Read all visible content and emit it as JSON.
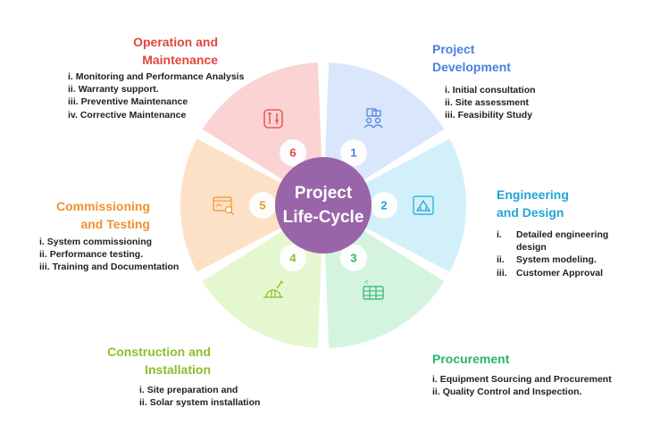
{
  "center_label": [
    "Project",
    "Life-Cycle"
  ],
  "stages": [
    {
      "number": "1",
      "title_lines": [
        "Project",
        "Development"
      ],
      "title_color": "#4a7fe0",
      "fill": "#d9e6fb",
      "number_color": "#4a7fe0",
      "icon": "people-briefcase-icon",
      "items": [
        {
          "num": "i.",
          "text": "Initial consultation"
        },
        {
          "num": "ii.",
          "text": "Site assessment"
        },
        {
          "num": "iii.",
          "text": "Feasibility Study"
        }
      ]
    },
    {
      "number": "2",
      "title_lines": [
        "Engineering",
        "and Design"
      ],
      "title_color": "#1fa6d6",
      "fill": "#d2f0fa",
      "number_color": "#1fa6d6",
      "icon": "blueprint-icon",
      "items": [
        {
          "num": "i.",
          "text": "Detailed engineering design"
        },
        {
          "num": "ii.",
          "text": "System modeling."
        },
        {
          "num": "iii.",
          "text": "Customer Approval"
        }
      ]
    },
    {
      "number": "3",
      "title_lines": [
        "Procurement"
      ],
      "title_color": "#2bb36b",
      "fill": "#d4f4e0",
      "number_color": "#2bb36b",
      "icon": "grid-sheet-icon",
      "items": [
        {
          "num": "i.",
          "text": "Equipment Sourcing and Procurement"
        },
        {
          "num": "ii.",
          "text": "Quality Control and Inspection."
        }
      ]
    },
    {
      "number": "4",
      "title_lines": [
        "Construction and",
        "Installation"
      ],
      "title_color": "#8dbd2a",
      "fill": "#e5f7cf",
      "number_color": "#8dbd2a",
      "icon": "construction-helmet-icon",
      "items": [
        {
          "num": "i.",
          "text": "Site preparation and"
        },
        {
          "num": "ii.",
          "text": "Solar system installation"
        }
      ]
    },
    {
      "number": "5",
      "title_lines": [
        "Commissioning",
        "and Testing"
      ],
      "title_color": "#f0922e",
      "fill": "#fde1c6",
      "number_color": "#f0922e",
      "icon": "browser-search-icon",
      "items": [
        {
          "num": "i.",
          "text": "System commissioning"
        },
        {
          "num": "ii.",
          "text": "Performance testing."
        },
        {
          "num": "iii.",
          "text": "Training and Documentation"
        }
      ]
    },
    {
      "number": "6",
      "title_lines": [
        "Operation and",
        "Maintenance"
      ],
      "title_color": "#e0473f",
      "fill": "#fbd3d3",
      "number_color": "#e0473f",
      "icon": "tools-icon",
      "items": [
        {
          "num": "i.",
          "text": "Monitoring and Performance Analysis"
        },
        {
          "num": "ii.",
          "text": "Warranty support."
        },
        {
          "num": "iii.",
          "text": "Preventive Maintenance"
        },
        {
          "num": "iv.",
          "text": "Corrective Maintenance"
        }
      ]
    }
  ],
  "center_fill": "#9a64a8"
}
